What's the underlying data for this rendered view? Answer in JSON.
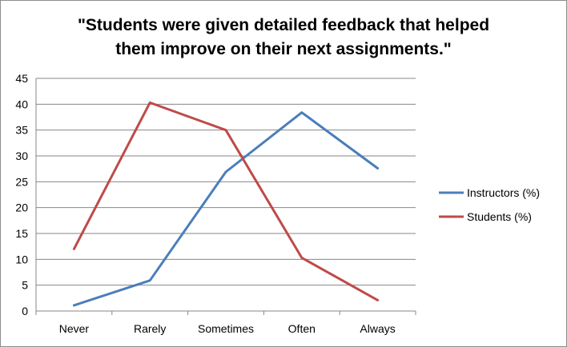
{
  "chart_data": {
    "type": "line",
    "title_lines": [
      "\"Students were given detailed feedback that helped",
      "them improve on their next assignments.\""
    ],
    "categories": [
      "Never",
      "Rarely",
      "Sometimes",
      "Often",
      "Always"
    ],
    "ylim": [
      0,
      45
    ],
    "yticks": [
      "0",
      "5",
      "10",
      "15",
      "20",
      "25",
      "30",
      "35",
      "40",
      "45"
    ],
    "grid": true,
    "legend_position": "right",
    "series": [
      {
        "name": "Instructors (%)",
        "color": "#4a7ebb",
        "values": [
          1.1,
          5.9,
          26.9,
          38.4,
          27.6
        ]
      },
      {
        "name": "Students (%)",
        "color": "#be4b48",
        "values": [
          12.0,
          40.3,
          35.0,
          10.3,
          2.1
        ]
      }
    ]
  }
}
